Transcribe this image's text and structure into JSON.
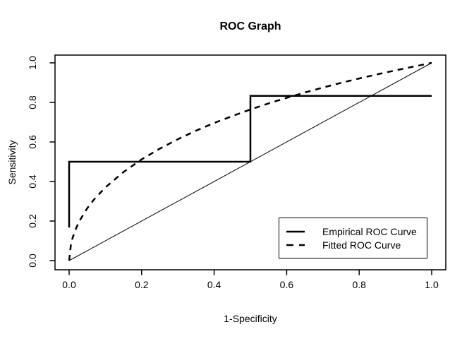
{
  "title": "ROC Graph",
  "axes": {
    "x_label": "1-Specificity",
    "y_label": "Sensitivity",
    "x_ticks": [
      "0.0",
      "0.2",
      "0.4",
      "0.6",
      "0.8",
      "1.0"
    ],
    "y_ticks": [
      "0.0",
      "0.2",
      "0.4",
      "0.6",
      "0.8",
      "1.0"
    ]
  },
  "legend": {
    "position": "bottom-right",
    "items": [
      {
        "label": "Empirical ROC Curve",
        "line_style": "solid"
      },
      {
        "label": "Fitted ROC Curve",
        "line_style": "dashed"
      }
    ]
  },
  "colors": {
    "foreground": "#000000",
    "background": "#ffffff"
  },
  "chart_data": {
    "type": "line",
    "title": "ROC Graph",
    "xlabel": "1-Specificity",
    "ylabel": "Sensitivity",
    "xlim": [
      0,
      1
    ],
    "ylim": [
      0,
      1
    ],
    "grid": false,
    "legend_position": "bottom-right",
    "series": [
      {
        "name": "Empirical ROC Curve",
        "slug": "empirical-roc-curve",
        "style": "solid",
        "line_width": 2,
        "x": [
          0,
          0,
          0.5,
          0.5,
          1
        ],
        "y": [
          0.167,
          0.5,
          0.5,
          0.833,
          0.833
        ]
      },
      {
        "name": "Fitted ROC Curve",
        "slug": "fitted-roc-curve",
        "style": "dashed",
        "line_width": 2,
        "x": [
          0,
          0.005,
          0.01,
          0.02,
          0.03,
          0.05,
          0.07,
          0.1,
          0.15,
          0.2,
          0.25,
          0.3,
          0.35,
          0.4,
          0.45,
          0.5,
          0.55,
          0.6,
          0.65,
          0.7,
          0.75,
          0.8,
          0.85,
          0.9,
          0.95,
          1
        ],
        "y": [
          0,
          0.082,
          0.118,
          0.167,
          0.205,
          0.265,
          0.312,
          0.37,
          0.448,
          0.512,
          0.566,
          0.614,
          0.657,
          0.696,
          0.731,
          0.764,
          0.795,
          0.823,
          0.85,
          0.875,
          0.899,
          0.921,
          0.942,
          0.962,
          0.981,
          1
        ]
      },
      {
        "name": "Chance diagonal",
        "slug": "chance-diagonal",
        "style": "thin",
        "line_width": 1,
        "x": [
          0,
          1
        ],
        "y": [
          0,
          1
        ]
      }
    ]
  }
}
